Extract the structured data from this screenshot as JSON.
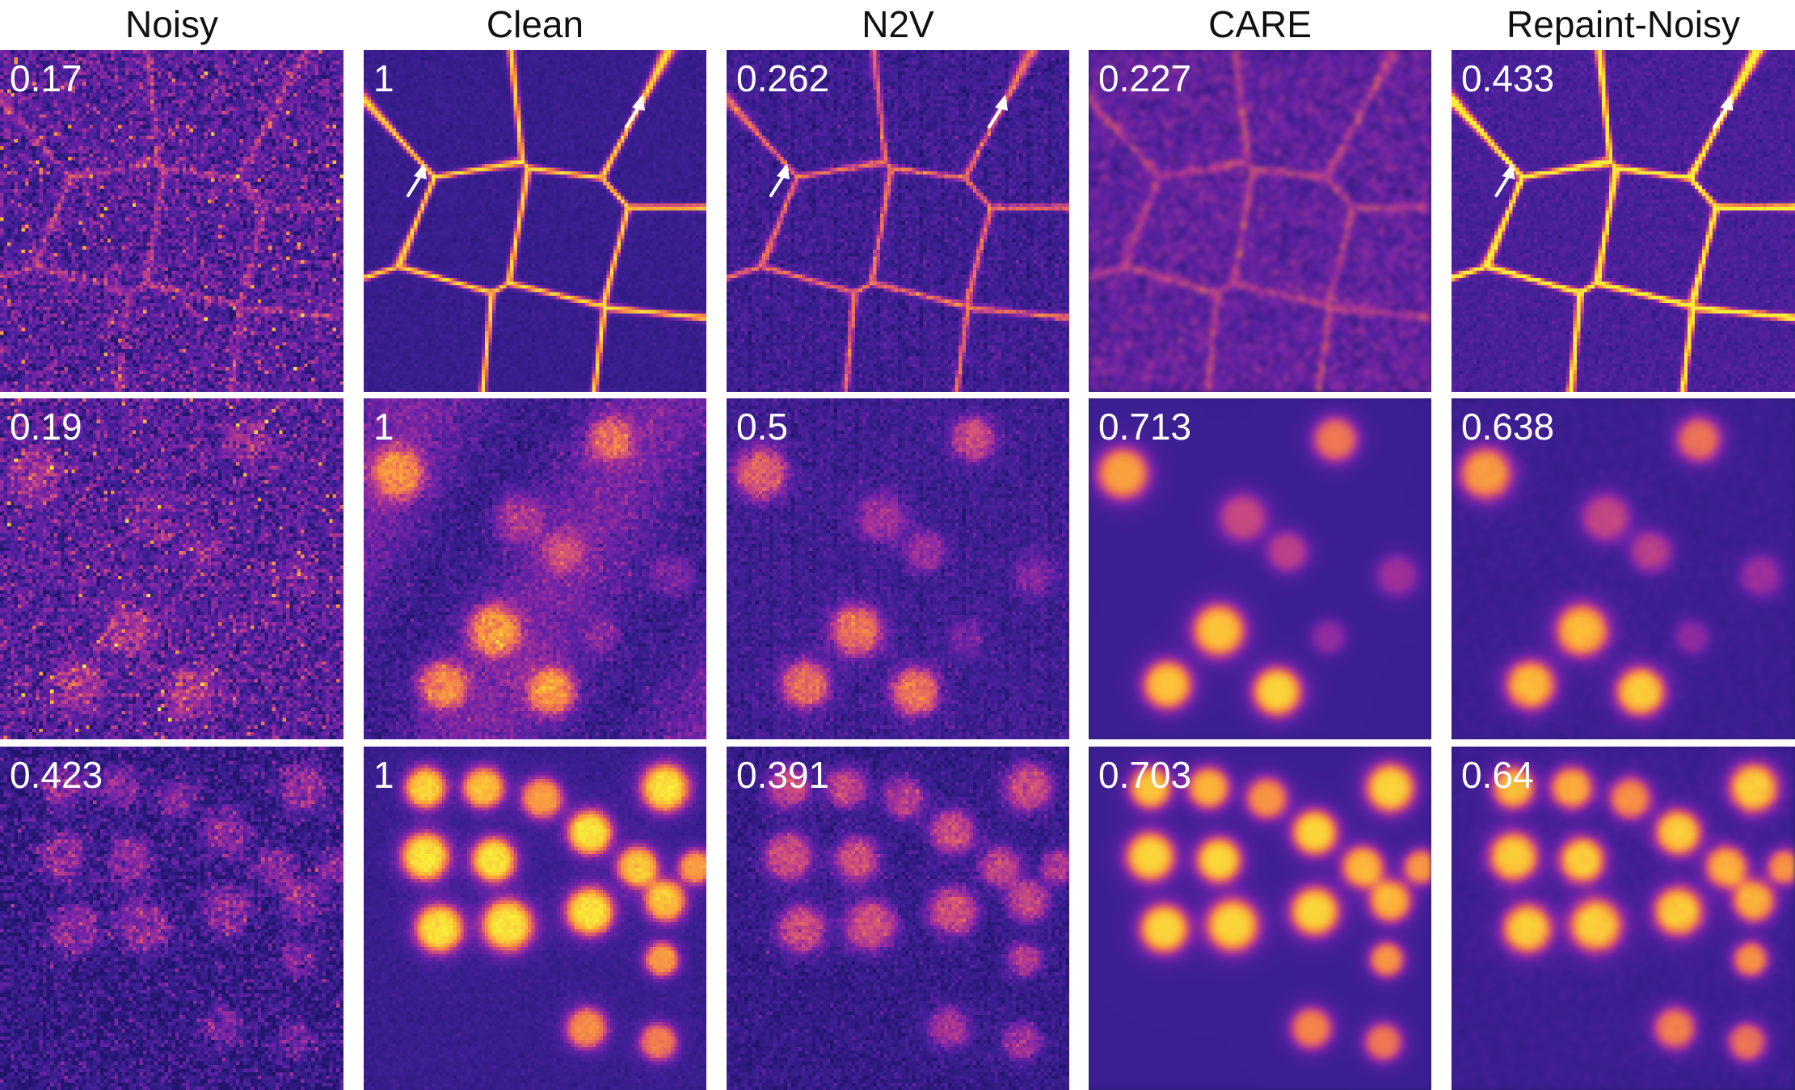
{
  "columns": [
    "Noisy",
    "Clean",
    "N2V",
    "CARE",
    "Repaint-Noisy"
  ],
  "colormap": {
    "name": "plasma-like",
    "stops": [
      "#21146b",
      "#3c1f93",
      "#6c22a8",
      "#a1309a",
      "#d1507a",
      "#f27b4e",
      "#fcaf3a",
      "#f8ee3a"
    ]
  },
  "rows": [
    {
      "content": "cell-membranes",
      "panels": [
        {
          "method": "Noisy",
          "score": "0.17",
          "arrows": false
        },
        {
          "method": "Clean",
          "score": "1",
          "arrows": true
        },
        {
          "method": "N2V",
          "score": "0.262",
          "arrows": true
        },
        {
          "method": "CARE",
          "score": "0.227",
          "arrows": false
        },
        {
          "method": "Repaint-Noisy",
          "score": "0.433",
          "arrows": true
        }
      ]
    },
    {
      "content": "nuclei-sparse",
      "panels": [
        {
          "method": "Noisy",
          "score": "0.19",
          "arrows": false
        },
        {
          "method": "Clean",
          "score": "1",
          "arrows": false
        },
        {
          "method": "N2V",
          "score": "0.5",
          "arrows": false
        },
        {
          "method": "CARE",
          "score": "0.713",
          "arrows": false
        },
        {
          "method": "Repaint-Noisy",
          "score": "0.638",
          "arrows": false
        }
      ]
    },
    {
      "content": "nuclei-dense",
      "panels": [
        {
          "method": "Noisy",
          "score": "0.423",
          "arrows": false
        },
        {
          "method": "Clean",
          "score": "1",
          "arrows": false
        },
        {
          "method": "N2V",
          "score": "0.391",
          "arrows": false
        },
        {
          "method": "CARE",
          "score": "0.703",
          "arrows": false
        },
        {
          "method": "Repaint-Noisy",
          "score": "0.64",
          "arrows": false
        }
      ]
    }
  ]
}
